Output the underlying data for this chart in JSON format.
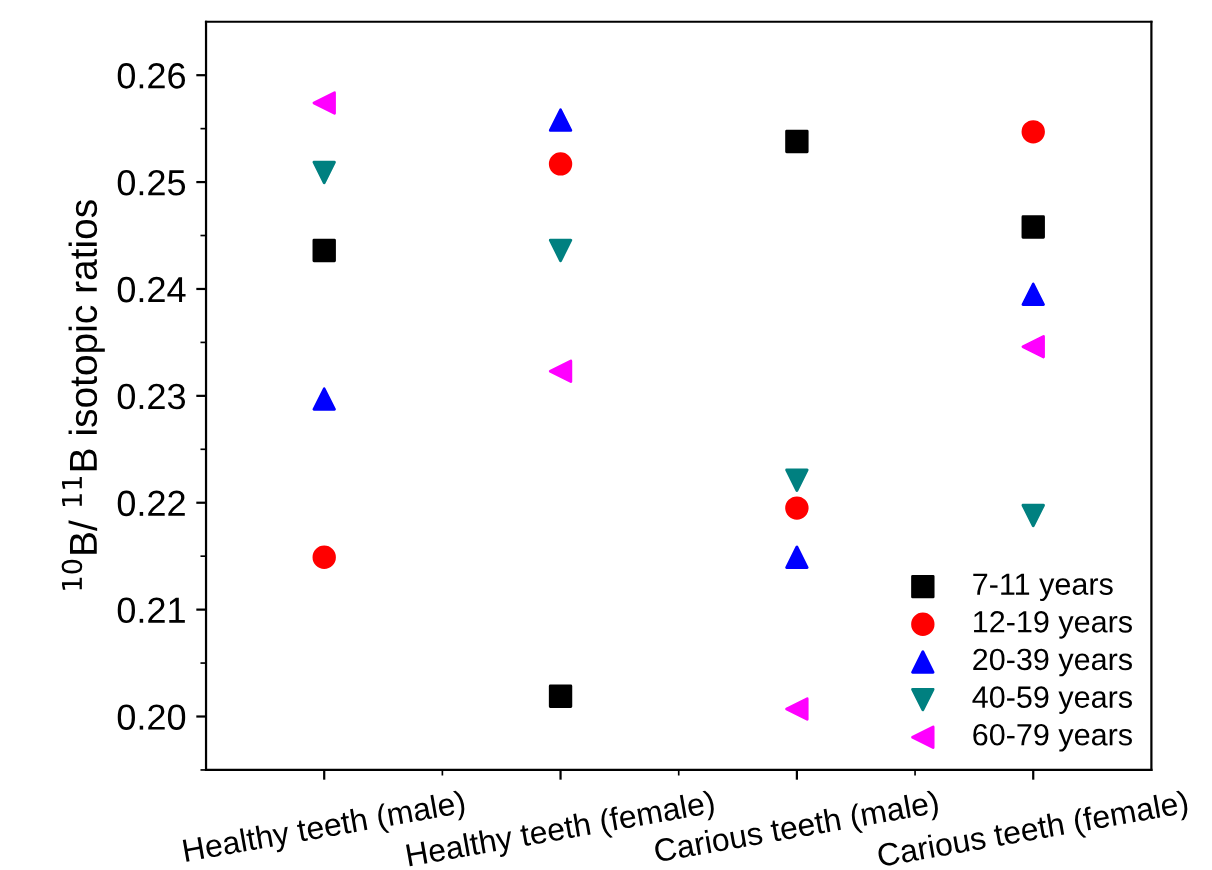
{
  "chart_data": {
    "type": "scatter",
    "ylabel": "$^{10}$B/ $^{11}$B isotopic ratios",
    "categories": [
      "Healthy teeth (male)",
      "Healthy teeth (female)",
      "Carious teeth (male)",
      "Carious teeth (female)"
    ],
    "series": [
      {
        "name": "7-11 years",
        "color": "#000000",
        "marker": "square",
        "values": [
          0.2436,
          0.2019,
          0.2538,
          0.2458
        ]
      },
      {
        "name": "12-19 years",
        "color": "#ff0000",
        "marker": "circle",
        "values": [
          0.2149,
          0.2517,
          0.2195,
          0.2547
        ]
      },
      {
        "name": "20-39 years",
        "color": "#0000ff",
        "marker": "triangle",
        "values": [
          0.2297,
          0.2558,
          0.2149,
          0.2395
        ]
      },
      {
        "name": "40-59 years",
        "color": "#008080",
        "marker": "triangle_down",
        "values": [
          0.2509,
          0.2436,
          0.2221,
          0.2188
        ]
      },
      {
        "name": "60-79 years",
        "color": "#ff00ff",
        "marker": "triangle_left",
        "values": [
          0.2574,
          0.2323,
          0.2007,
          0.2346
        ]
      }
    ],
    "ylim": [
      0.195,
      0.265
    ],
    "yticks": [
      {
        "value": 0.2,
        "label": "0.20"
      },
      {
        "value": 0.21,
        "label": "0.21"
      },
      {
        "value": 0.22,
        "label": "0.22"
      },
      {
        "value": 0.23,
        "label": "0.23"
      },
      {
        "value": 0.24,
        "label": "0.24"
      },
      {
        "value": 0.25,
        "label": "0.25"
      },
      {
        "value": 0.26,
        "label": "0.26"
      }
    ],
    "grid": false,
    "legend": "bottom right"
  }
}
